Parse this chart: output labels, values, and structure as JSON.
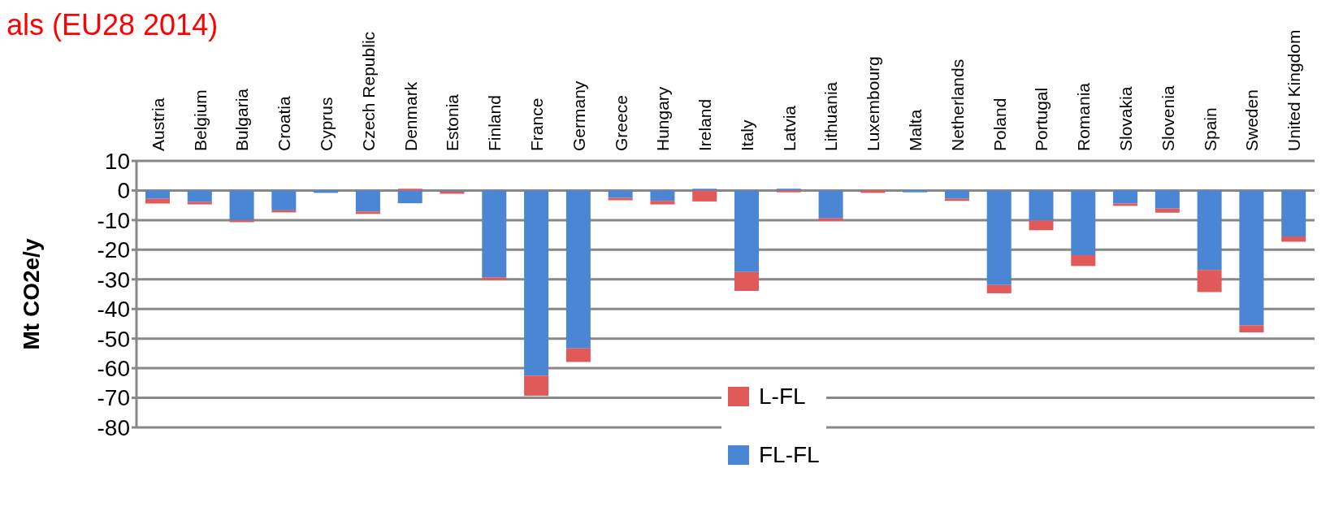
{
  "chart_data": {
    "type": "bar",
    "title": "als (EU28 2014)",
    "ylabel": "Mt CO2e/y",
    "stacked": true,
    "categories": [
      "Austria",
      "Belgium",
      "Bulgaria",
      "Croatia",
      "Cyprus",
      "Czech Republic",
      "Denmark",
      "Estonia",
      "Finland",
      "France",
      "Germany",
      "Greece",
      "Hungary",
      "Ireland",
      "Italy",
      "Latvia",
      "Lithuania",
      "Luxembourg",
      "Malta",
      "Netherlands",
      "Poland",
      "Portugal",
      "Romania",
      "Slovakia",
      "Slovenia",
      "Spain",
      "Sweden",
      "United Kingdom"
    ],
    "series": [
      {
        "name": "FL-FL",
        "color": "#4a86d4",
        "values": [
          -2.8,
          -3.9,
          -10,
          -6.7,
          -0.8,
          -7.1,
          -4.3,
          -0.3,
          -29.3,
          -62.5,
          -53.3,
          -2.5,
          -3.5,
          0.6,
          -27.5,
          0.6,
          -9.4,
          0,
          -0.6,
          -2.8,
          -31.9,
          -10.1,
          -21.8,
          -4.4,
          -6.1,
          -26.8,
          -45.5,
          -15.5
        ]
      },
      {
        "name": "L-FL",
        "color": "#e05a5a",
        "values": [
          -1.6,
          -0.8,
          -0.7,
          -0.7,
          0,
          -0.8,
          0.6,
          -0.8,
          -0.8,
          -6.8,
          -4.6,
          -0.8,
          -1.2,
          -3.7,
          -6.4,
          -0.6,
          -0.9,
          -0.8,
          0,
          -0.7,
          -2.8,
          -3.3,
          -3.7,
          -0.8,
          -1.4,
          -7.5,
          -2.4,
          -1.8
        ]
      }
    ],
    "ylim": [
      -80,
      10
    ],
    "yticks": [
      10,
      0,
      -10,
      -20,
      -30,
      -40,
      -50,
      -60,
      -70,
      -80
    ],
    "grid": "y",
    "legend": "bottom"
  }
}
